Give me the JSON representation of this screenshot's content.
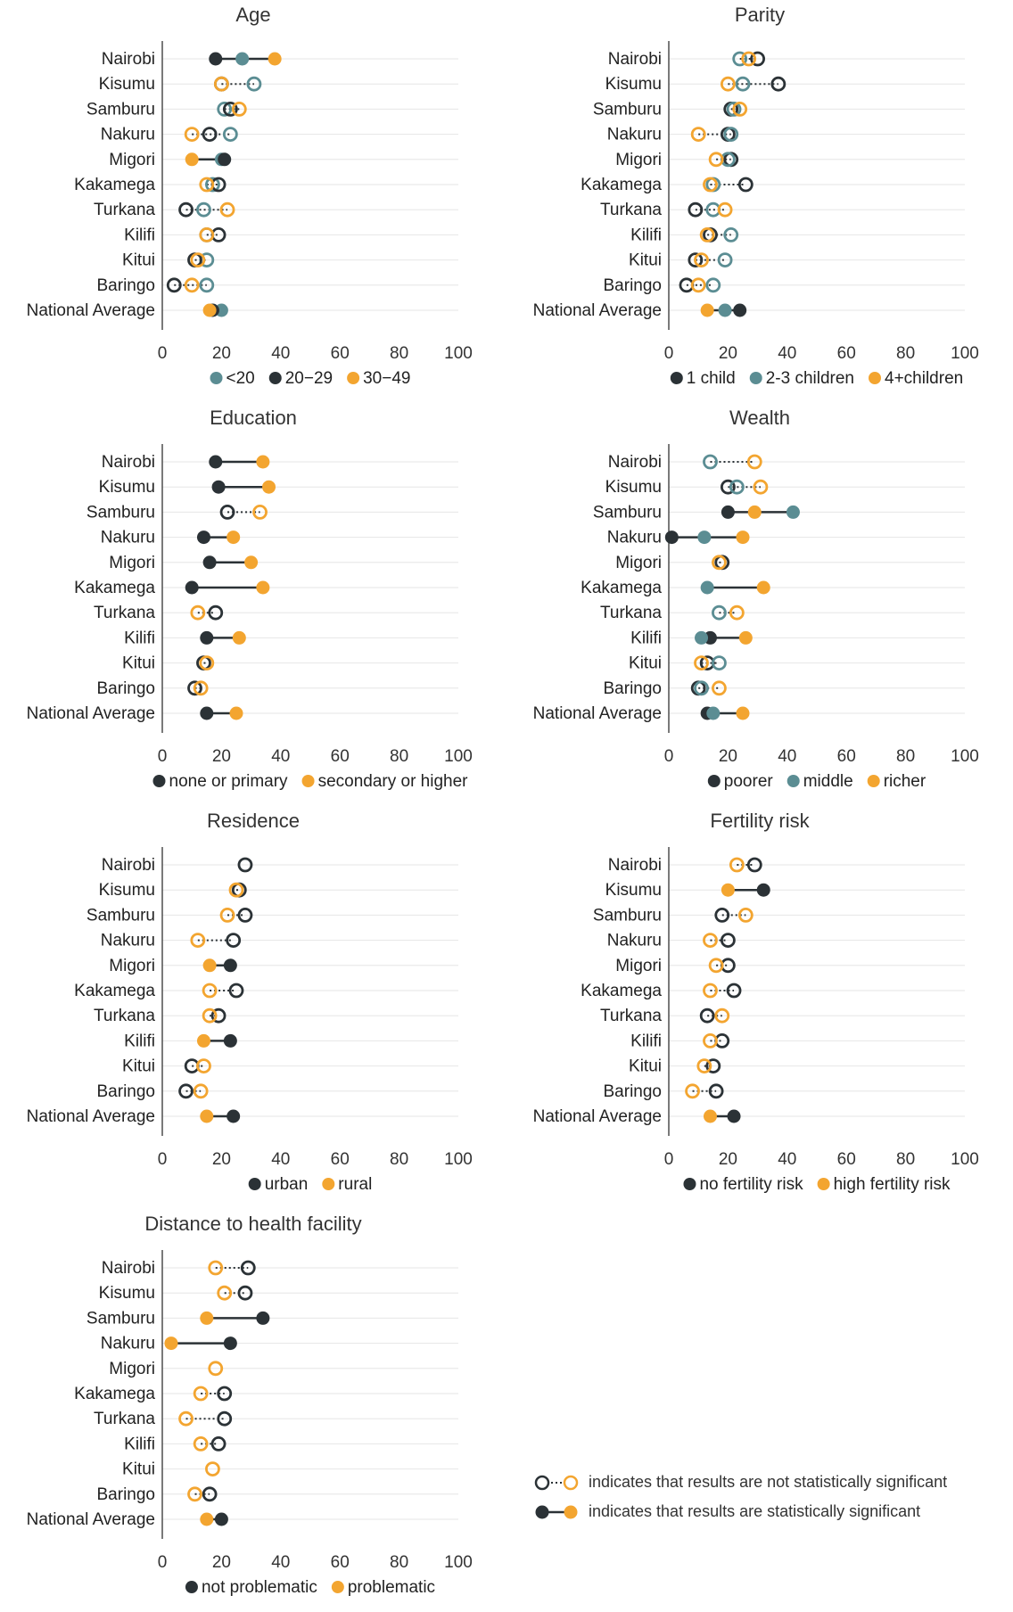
{
  "colors": {
    "dark": "#2b3236",
    "teal": "#5b8d93",
    "orange": "#f3a530",
    "grid": "#e6e6e6",
    "axis": "#333333"
  },
  "chart_data": [
    {
      "id": "age",
      "type": "dot-range",
      "title": "Age",
      "categories": [
        "Nairobi",
        "Kisumu",
        "Samburu",
        "Nakuru",
        "Migori",
        "Kakamega",
        "Turkana",
        "Kilifi",
        "Kitui",
        "Baringo",
        "National Average"
      ],
      "xlim": [
        0,
        100
      ],
      "xticks": [
        "0",
        "20",
        "40",
        "60",
        "80",
        "100"
      ],
      "series": [
        {
          "name": "<20",
          "color": "teal",
          "values": [
            27,
            31,
            21,
            23,
            20,
            17,
            14,
            15,
            15,
            15,
            20
          ]
        },
        {
          "name": "20−29",
          "color": "dark",
          "values": [
            18,
            20,
            23,
            16,
            21,
            19,
            8,
            19,
            11,
            4,
            17
          ]
        },
        {
          "name": "30−49",
          "color": "orange",
          "values": [
            38,
            20,
            26,
            10,
            10,
            15,
            22,
            15,
            12,
            10,
            16
          ]
        }
      ],
      "significant": [
        true,
        false,
        false,
        false,
        true,
        false,
        false,
        false,
        false,
        false,
        true
      ]
    },
    {
      "id": "parity",
      "type": "dot-range",
      "title": "Parity",
      "categories": [
        "Nairobi",
        "Kisumu",
        "Samburu",
        "Nakuru",
        "Migori",
        "Kakamega",
        "Turkana",
        "Kilifi",
        "Kitui",
        "Baringo",
        "National Average"
      ],
      "xlim": [
        0,
        100
      ],
      "xticks": [
        "0",
        "20",
        "40",
        "60",
        "80",
        "100"
      ],
      "series": [
        {
          "name": "1 child",
          "color": "dark",
          "values": [
            30,
            37,
            21,
            20,
            21,
            26,
            9,
            14,
            9,
            6,
            24
          ]
        },
        {
          "name": "2-3 children",
          "color": "teal",
          "values": [
            24,
            25,
            22,
            21,
            20,
            15,
            15,
            21,
            19,
            15,
            19
          ]
        },
        {
          "name": "4+children",
          "color": "orange",
          "values": [
            27,
            20,
            24,
            10,
            16,
            14,
            19,
            13,
            11,
            10,
            13
          ]
        }
      ],
      "significant": [
        false,
        false,
        false,
        false,
        false,
        false,
        false,
        false,
        false,
        false,
        true
      ]
    },
    {
      "id": "education",
      "type": "dot-range",
      "title": "Education",
      "categories": [
        "Nairobi",
        "Kisumu",
        "Samburu",
        "Nakuru",
        "Migori",
        "Kakamega",
        "Turkana",
        "Kilifi",
        "Kitui",
        "Baringo",
        "National Average"
      ],
      "xlim": [
        0,
        100
      ],
      "xticks": [
        "0",
        "20",
        "40",
        "60",
        "80",
        "100"
      ],
      "series": [
        {
          "name": "none or primary",
          "color": "dark",
          "values": [
            18,
            19,
            22,
            14,
            16,
            10,
            18,
            15,
            14,
            11,
            15
          ]
        },
        {
          "name": "secondary or higher",
          "color": "orange",
          "values": [
            34,
            36,
            33,
            24,
            30,
            34,
            12,
            26,
            15,
            13,
            25
          ]
        }
      ],
      "significant": [
        true,
        true,
        false,
        true,
        true,
        true,
        false,
        true,
        false,
        false,
        true
      ]
    },
    {
      "id": "wealth",
      "type": "dot-range",
      "title": "Wealth",
      "categories": [
        "Nairobi",
        "Kisumu",
        "Samburu",
        "Nakuru",
        "Migori",
        "Kakamega",
        "Turkana",
        "Kilifi",
        "Kitui",
        "Baringo",
        "National Average"
      ],
      "xlim": [
        0,
        100
      ],
      "xticks": [
        "0",
        "20",
        "40",
        "60",
        "80",
        "100"
      ],
      "series": [
        {
          "name": "poorer",
          "color": "dark",
          "values": [
            null,
            20,
            20,
            1,
            18,
            null,
            null,
            14,
            13,
            10,
            13
          ]
        },
        {
          "name": "middle",
          "color": "teal",
          "values": [
            14,
            23,
            42,
            12,
            null,
            13,
            17,
            11,
            17,
            11,
            15
          ]
        },
        {
          "name": "richer",
          "color": "orange",
          "values": [
            29,
            31,
            29,
            25,
            17,
            32,
            23,
            26,
            11,
            17,
            25
          ]
        }
      ],
      "significant": [
        false,
        false,
        true,
        true,
        false,
        true,
        false,
        true,
        false,
        false,
        true
      ]
    },
    {
      "id": "residence",
      "type": "dot-range",
      "title": "Residence",
      "categories": [
        "Nairobi",
        "Kisumu",
        "Samburu",
        "Nakuru",
        "Migori",
        "Kakamega",
        "Turkana",
        "Kilifi",
        "Kitui",
        "Baringo",
        "National Average"
      ],
      "xlim": [
        0,
        100
      ],
      "xticks": [
        "0",
        "20",
        "40",
        "60",
        "80",
        "100"
      ],
      "series": [
        {
          "name": "urban",
          "color": "dark",
          "values": [
            28,
            26,
            28,
            24,
            23,
            25,
            19,
            23,
            10,
            8,
            24
          ]
        },
        {
          "name": "rural",
          "color": "orange",
          "values": [
            null,
            25,
            22,
            12,
            16,
            16,
            16,
            14,
            14,
            13,
            15
          ]
        }
      ],
      "significant": [
        false,
        false,
        false,
        false,
        true,
        false,
        false,
        true,
        false,
        false,
        true
      ]
    },
    {
      "id": "fertility",
      "type": "dot-range",
      "title": "Fertility risk",
      "categories": [
        "Nairobi",
        "Kisumu",
        "Samburu",
        "Nakuru",
        "Migori",
        "Kakamega",
        "Turkana",
        "Kilifi",
        "Kitui",
        "Baringo",
        "National Average"
      ],
      "xlim": [
        0,
        100
      ],
      "xticks": [
        "0",
        "20",
        "40",
        "60",
        "80",
        "100"
      ],
      "series": [
        {
          "name": "no fertility risk",
          "color": "dark",
          "values": [
            29,
            32,
            18,
            20,
            20,
            22,
            13,
            18,
            15,
            16,
            22
          ]
        },
        {
          "name": "high fertility risk",
          "color": "orange",
          "values": [
            23,
            20,
            26,
            14,
            16,
            14,
            18,
            14,
            12,
            8,
            14
          ]
        }
      ],
      "significant": [
        false,
        true,
        false,
        false,
        false,
        false,
        false,
        false,
        false,
        false,
        true
      ]
    },
    {
      "id": "distance",
      "type": "dot-range",
      "title": "Distance to health facility",
      "categories": [
        "Nairobi",
        "Kisumu",
        "Samburu",
        "Nakuru",
        "Migori",
        "Kakamega",
        "Turkana",
        "Kilifi",
        "Kitui",
        "Baringo",
        "National Average"
      ],
      "xlim": [
        0,
        100
      ],
      "xticks": [
        "0",
        "20",
        "40",
        "60",
        "80",
        "100"
      ],
      "series": [
        {
          "name": "not problematic",
          "color": "dark",
          "values": [
            29,
            28,
            34,
            23,
            null,
            21,
            21,
            19,
            null,
            16,
            20
          ]
        },
        {
          "name": "problematic",
          "color": "orange",
          "values": [
            18,
            21,
            15,
            3,
            18,
            13,
            8,
            13,
            17,
            11,
            15
          ]
        }
      ],
      "significant": [
        false,
        false,
        true,
        true,
        false,
        false,
        false,
        false,
        false,
        false,
        true
      ]
    }
  ],
  "legend_note": {
    "not_significant": "indicates that results are not statistically significant",
    "significant": "indicates that results are statistically significant"
  }
}
